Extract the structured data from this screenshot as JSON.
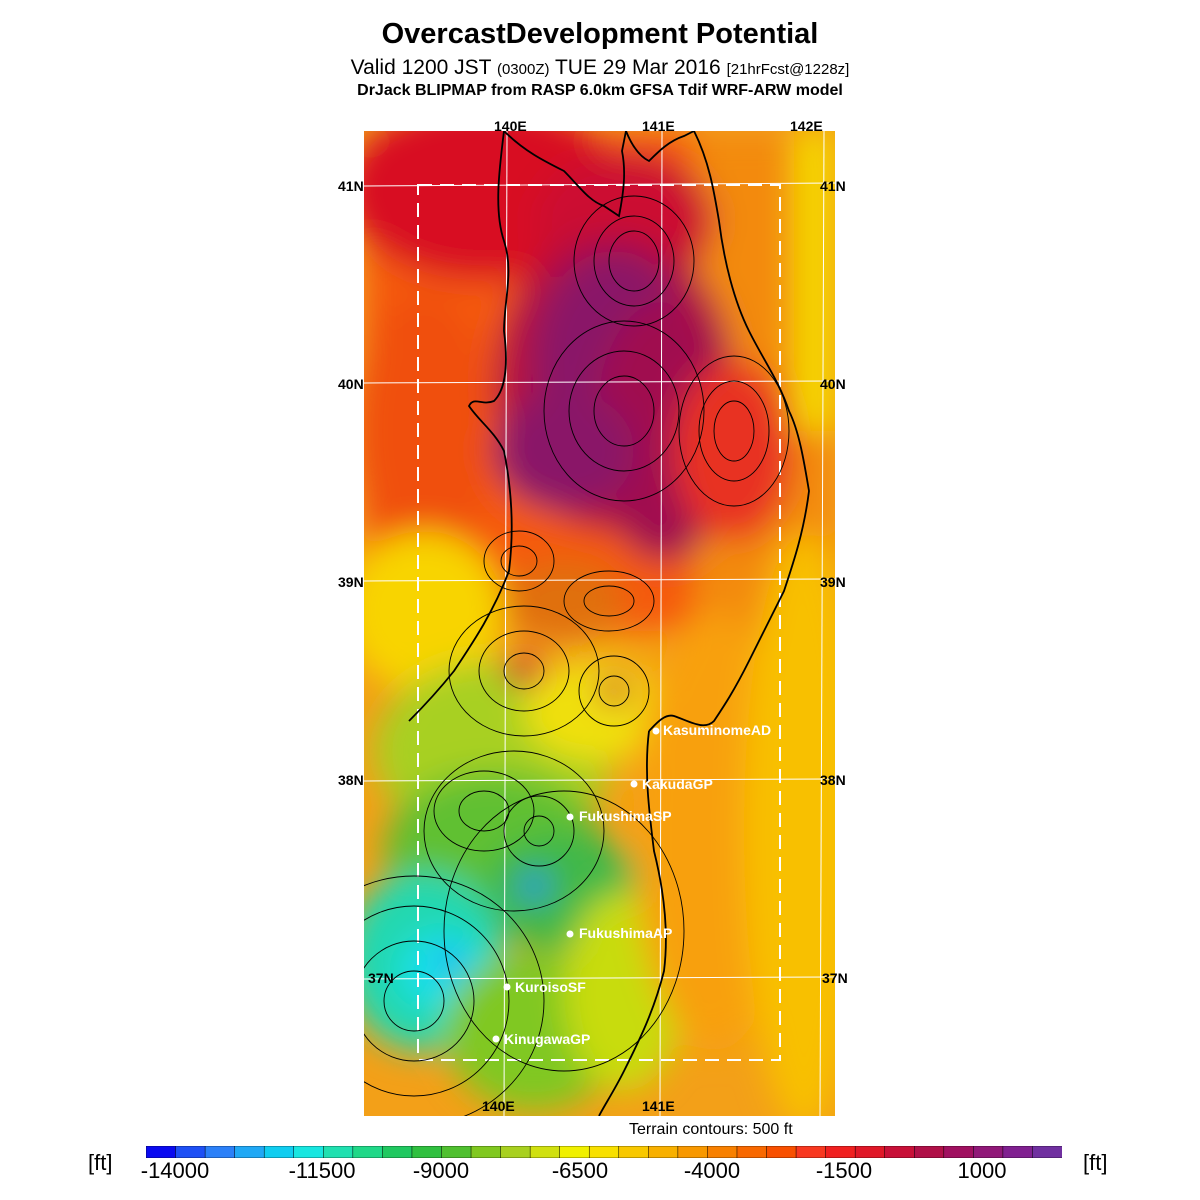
{
  "header": {
    "title": "OvercastDevelopment Potential",
    "valid_prefix": "Valid 1200 JST",
    "valid_zulu": "(0300Z)",
    "valid_date": "TUE 29 Mar 2016",
    "forecast": "[21hrFcst@1228z]",
    "model_line": "DrJack BLIPMAP from RASP 6.0km GFSA Tdif WRF-ARW model"
  },
  "map": {
    "lon_ticks": [
      "140E",
      "141E",
      "142E"
    ],
    "lat_ticks": [
      "41N",
      "40N",
      "39N",
      "38N",
      "37N"
    ],
    "stations": [
      {
        "name": "KasuminomeAD"
      },
      {
        "name": "KakudaGP"
      },
      {
        "name": "FukushimaSP"
      },
      {
        "name": "FukushimaAP"
      },
      {
        "name": "KuroisoSF"
      },
      {
        "name": "KinugawaGP"
      }
    ],
    "terrain_note": "Terrain contours: 500 ft"
  },
  "colorbar": {
    "unit": "[ft]",
    "labels": [
      "-14000",
      "-11500",
      "-9000",
      "-6500",
      "-4000",
      "-1500",
      "1000"
    ],
    "colors": [
      "#0a0af0",
      "#1e50f5",
      "#2b80f8",
      "#20a8f5",
      "#10cdf0",
      "#18e6e0",
      "#20e0b0",
      "#20d888",
      "#20c860",
      "#30c040",
      "#50c030",
      "#80c820",
      "#a8d020",
      "#d0e010",
      "#f0f000",
      "#f8e000",
      "#f8c800",
      "#f8b000",
      "#f89800",
      "#f88000",
      "#f86800",
      "#f85000",
      "#f83820",
      "#f02020",
      "#e01828",
      "#c81038",
      "#b01048",
      "#a01060",
      "#901878",
      "#802090",
      "#7030a0"
    ]
  }
}
